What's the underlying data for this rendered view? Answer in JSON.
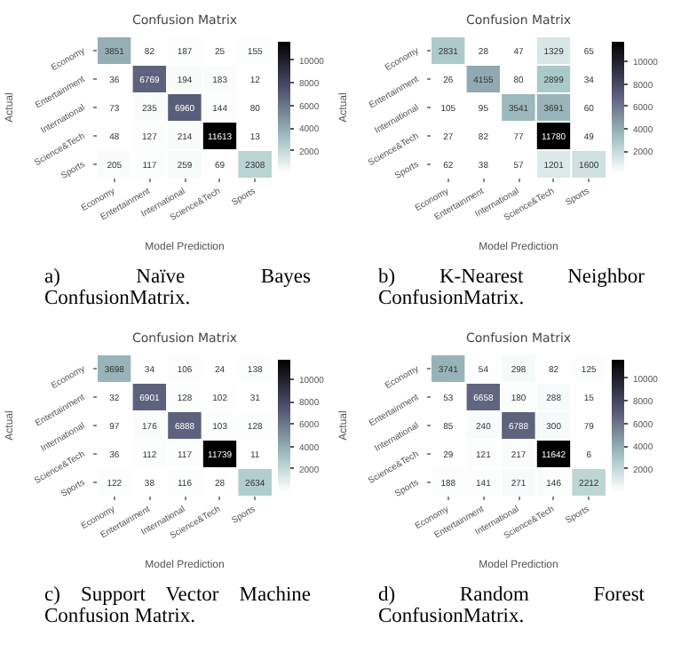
{
  "chart_data": [
    {
      "type": "heatmap",
      "title": "Confusion Matrix",
      "xlabel": "Model Prediction",
      "ylabel": "Actual",
      "categories": [
        "Economy",
        "Entertainment",
        "International",
        "Science&Tech",
        "Sports"
      ],
      "y_categories": [
        "Economy",
        "Entertainment",
        "International",
        "Science&Tech",
        "Sports"
      ],
      "cells": [
        [
          3851,
          82,
          187,
          25,
          155
        ],
        [
          36,
          6769,
          194,
          183,
          12
        ],
        [
          73,
          235,
          6960,
          144,
          80
        ],
        [
          48,
          127,
          214,
          11613,
          13
        ],
        [
          205,
          117,
          259,
          69,
          2308
        ]
      ],
      "clim": [
        12,
        11613
      ],
      "cticks": [
        2000,
        4000,
        6000,
        8000,
        10000
      ],
      "data_labels": true,
      "annotations": [
        "a)     Naïve Bayes ConfusionMatrix."
      ]
    },
    {
      "type": "heatmap",
      "title": "Confusion Matrix",
      "xlabel": "Model Prediction",
      "ylabel": "Actual",
      "categories": [
        "Economy",
        "Entertainment",
        "International",
        "Science&Tech",
        "Sports"
      ],
      "y_categories": [
        "Economy",
        "Entertainment",
        "International",
        "Science&Tech",
        "Sports"
      ],
      "cells": [
        [
          2831,
          28,
          47,
          1329,
          65
        ],
        [
          26,
          4155,
          80,
          2899,
          34
        ],
        [
          105,
          95,
          3541,
          3691,
          60
        ],
        [
          27,
          82,
          77,
          11780,
          49
        ],
        [
          62,
          38,
          57,
          1201,
          1600
        ]
      ],
      "clim": [
        26,
        11780
      ],
      "cticks": [
        2000,
        4000,
        6000,
        8000,
        10000
      ],
      "data_labels": true,
      "annotations": [
        "b)     K-Nearest Neighbor ConfusionMatrix."
      ]
    },
    {
      "type": "heatmap",
      "title": "Confusion Matrix",
      "xlabel": "Model Prediction",
      "ylabel": "Actual",
      "categories": [
        "Economy",
        "Entertainment",
        "International",
        "Science&Tech",
        "Sports"
      ],
      "y_categories": [
        "Economy",
        "Entertainment",
        "International",
        "Science&Tech",
        "Sports"
      ],
      "cells": [
        [
          3698,
          34,
          106,
          24,
          138
        ],
        [
          32,
          6901,
          128,
          102,
          31
        ],
        [
          97,
          176,
          6888,
          103,
          128
        ],
        [
          36,
          112,
          117,
          11739,
          11
        ],
        [
          122,
          38,
          116,
          28,
          2634
        ]
      ],
      "clim": [
        11,
        11739
      ],
      "cticks": [
        2000,
        4000,
        6000,
        8000,
        10000
      ],
      "data_labels": true,
      "annotations": [
        "c)     Support Vector Machine Confusion Matrix."
      ]
    },
    {
      "type": "heatmap",
      "title": "Confusion Matrix",
      "xlabel": "Model Prediction",
      "ylabel": "Actual",
      "categories": [
        "Economy",
        "Entertainment",
        "International",
        "Science&Tech",
        "Sports"
      ],
      "y_categories": [
        "Economy",
        "Entertainment",
        "International",
        "Science&Tech",
        "Sports"
      ],
      "cells": [
        [
          3741,
          54,
          298,
          82,
          125
        ],
        [
          53,
          6658,
          180,
          288,
          15
        ],
        [
          85,
          240,
          6788,
          300,
          79
        ],
        [
          29,
          121,
          217,
          11642,
          6
        ],
        [
          188,
          141,
          271,
          146,
          2212
        ]
      ],
      "clim": [
        6,
        11642
      ],
      "cticks": [
        2000,
        4000,
        6000,
        8000,
        10000
      ],
      "data_labels": true,
      "annotations": [
        "d)     Random Forest ConfusionMatrix."
      ]
    }
  ]
}
